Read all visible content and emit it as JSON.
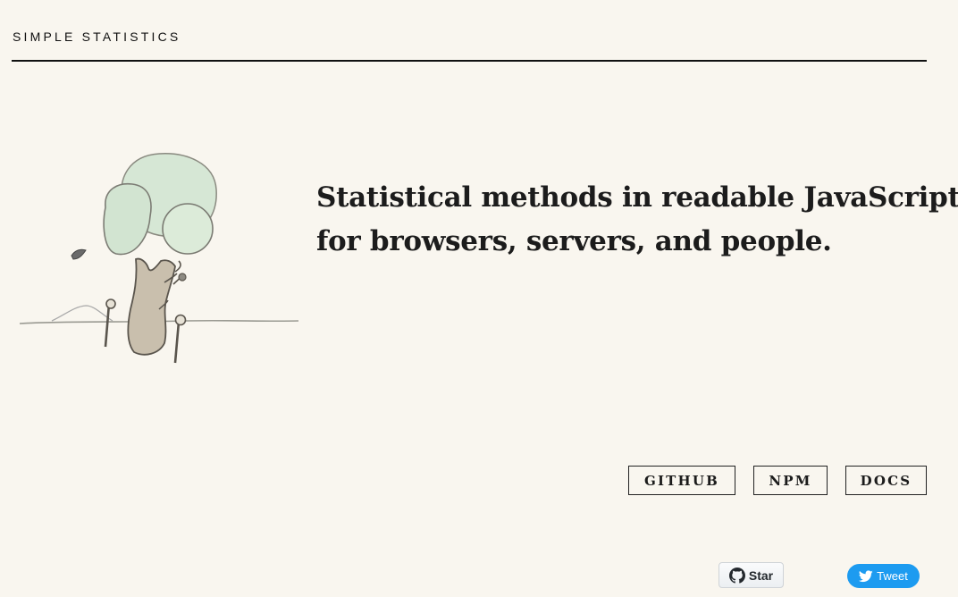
{
  "header": {
    "site_title": "SIMPLE STATISTICS"
  },
  "hero": {
    "tagline_line1": "Statistical methods in readable JavaScript",
    "tagline_line2": "for browsers, servers, and people.",
    "illustration_icon": "tree-illustration"
  },
  "links": {
    "github_label": "GITHUB",
    "npm_label": "NPM",
    "docs_label": "DOCS"
  },
  "social": {
    "star_label": "Star",
    "star_icon": "github-icon",
    "tweet_label": "Tweet",
    "tweet_icon": "twitter-bird-icon"
  },
  "colors": {
    "background": "#f9f6ef",
    "text": "#1c1c1c",
    "tweet_blue": "#1d9bf0",
    "foliage": "#d4e6d3"
  }
}
